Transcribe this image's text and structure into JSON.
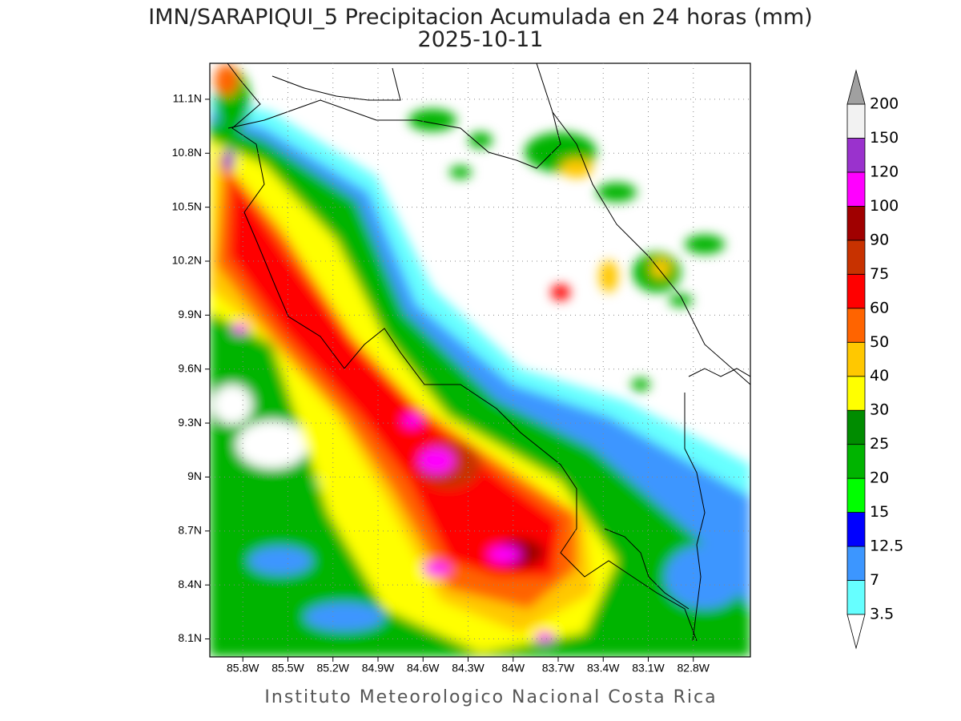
{
  "map": {
    "title": "IMN/SARAPIQUI_5 Precipitacion Acumulada en 24 horas (mm)",
    "date": "2025-10-11",
    "lon_range": [
      -86.02,
      -82.42
    ],
    "lat_range": [
      8.0,
      11.3
    ],
    "xticks": [
      {
        "value": -85.8,
        "label": "85.8W"
      },
      {
        "value": -85.5,
        "label": "85.5W"
      },
      {
        "value": -85.2,
        "label": "85.2W"
      },
      {
        "value": -84.9,
        "label": "84.9W"
      },
      {
        "value": -84.6,
        "label": "84.6W"
      },
      {
        "value": -84.3,
        "label": "84.3W"
      },
      {
        "value": -84.0,
        "label": "84W"
      },
      {
        "value": -83.7,
        "label": "83.7W"
      },
      {
        "value": -83.4,
        "label": "83.4W"
      },
      {
        "value": -83.1,
        "label": "83.1W"
      },
      {
        "value": -82.8,
        "label": "82.8W"
      }
    ],
    "yticks": [
      {
        "value": 8.1,
        "label": "8.1N"
      },
      {
        "value": 8.4,
        "label": "8.4N"
      },
      {
        "value": 8.7,
        "label": "8.7N"
      },
      {
        "value": 9.0,
        "label": "9N"
      },
      {
        "value": 9.3,
        "label": "9.3N"
      },
      {
        "value": 9.6,
        "label": "9.6N"
      },
      {
        "value": 9.9,
        "label": "9.9N"
      },
      {
        "value": 10.2,
        "label": "10.2N"
      },
      {
        "value": 10.5,
        "label": "10.5N"
      },
      {
        "value": 10.8,
        "label": "10.8N"
      },
      {
        "value": 11.1,
        "label": "11.1N"
      }
    ],
    "grid": true
  },
  "legend": {
    "levels": [
      3.5,
      7,
      12.5,
      15,
      20,
      25,
      30,
      40,
      50,
      60,
      75,
      90,
      100,
      120,
      150,
      200
    ],
    "colors": [
      "#66ffff",
      "#3c96ff",
      "#0000ff",
      "#00ff00",
      "#00b400",
      "#008c00",
      "#ffff00",
      "#ffc800",
      "#ff6400",
      "#ff0000",
      "#c83200",
      "#a00000",
      "#ff00ff",
      "#9a32cd",
      "#f2f2f2"
    ],
    "under_color": "#ffffff",
    "over_color": "#a0a0a0"
  },
  "footer": "Instituto Meteorologico Nacional Costa Rica"
}
